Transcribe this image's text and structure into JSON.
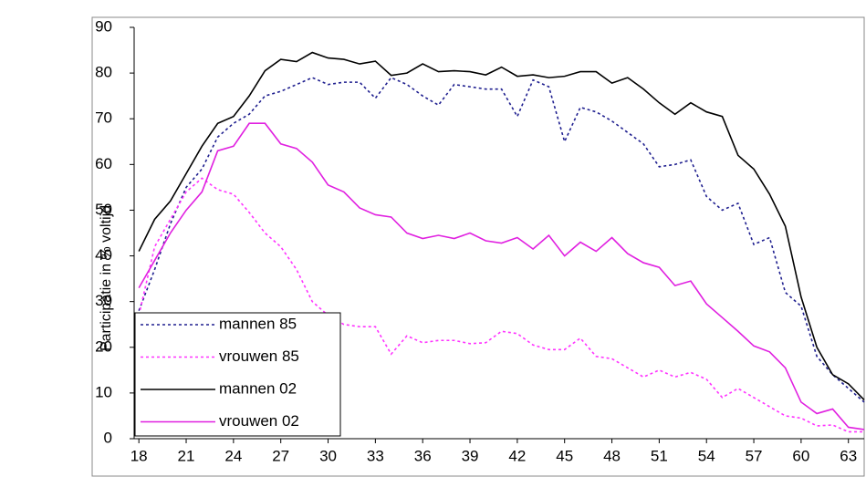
{
  "chart_data": {
    "type": "line",
    "ylabel": "Participatie in % voltijd",
    "x": [
      18,
      19,
      20,
      21,
      22,
      23,
      24,
      25,
      26,
      27,
      28,
      29,
      30,
      31,
      32,
      33,
      34,
      35,
      36,
      37,
      38,
      39,
      40,
      41,
      42,
      43,
      44,
      45,
      46,
      47,
      48,
      49,
      50,
      51,
      52,
      53,
      54,
      55,
      56,
      57,
      58,
      59,
      60,
      61,
      62,
      63,
      64
    ],
    "xlim": [
      17.7,
      64
    ],
    "xticks": [
      18,
      21,
      24,
      27,
      30,
      33,
      36,
      39,
      42,
      45,
      48,
      51,
      54,
      57,
      60,
      63
    ],
    "ylim": [
      0,
      90
    ],
    "yticks": [
      0,
      10,
      20,
      30,
      40,
      50,
      60,
      70,
      80,
      90
    ],
    "legend": "lower left",
    "series": [
      {
        "name": "mannen 85",
        "color": "#1f1f8f",
        "style": "dotted",
        "values": [
          28,
          37,
          47,
          55,
          59,
          66,
          69,
          71,
          75,
          76,
          77.5,
          79,
          77.5,
          78,
          78,
          74.5,
          79,
          77.5,
          75,
          73,
          77.5,
          77,
          76.5,
          76.5,
          70.5,
          78.5,
          77,
          65,
          72.5,
          71.5,
          69.5,
          67,
          64.5,
          59.5,
          60,
          61,
          53,
          50,
          51.5,
          42.5,
          44,
          32,
          29,
          18,
          14,
          11,
          8
        ]
      },
      {
        "name": "vrouwen 85",
        "color": "#ff33ff",
        "style": "dotted",
        "values": [
          27,
          42,
          48,
          54,
          57,
          54.5,
          53.5,
          49.5,
          45,
          42,
          37,
          30,
          27,
          25,
          24.5,
          24.5,
          18.5,
          22.5,
          21,
          21.5,
          21.5,
          20.8,
          21,
          23.5,
          23,
          20.5,
          19.5,
          19.5,
          22,
          18,
          17.5,
          15.5,
          13.5,
          15,
          13.5,
          14.5,
          13,
          9,
          11,
          9,
          7,
          5,
          4.5,
          2.8,
          3,
          1.5,
          1.5
        ]
      },
      {
        "name": "mannen 02",
        "color": "#000000",
        "style": "solid",
        "values": [
          41,
          48,
          52,
          58,
          64,
          69,
          70.5,
          75,
          80.5,
          83,
          82.5,
          84.5,
          83.3,
          83,
          82,
          82.6,
          79.5,
          80,
          82,
          80.3,
          80.5,
          80.3,
          79.6,
          81.3,
          79.3,
          79.6,
          79,
          79.3,
          80.3,
          80.3,
          77.8,
          79,
          76.5,
          73.5,
          71,
          73.5,
          71.5,
          70.5,
          62,
          59,
          53.5,
          46.5,
          31,
          20,
          14,
          12,
          8.5
        ]
      },
      {
        "name": "vrouwen 02",
        "color": "#e020e0",
        "style": "solid",
        "values": [
          33,
          39,
          45,
          50,
          54,
          63,
          64,
          69,
          69,
          64.5,
          63.5,
          60.5,
          55.5,
          54,
          50.5,
          49,
          48.5,
          45,
          43.8,
          44.5,
          43.8,
          45,
          43.3,
          42.8,
          44,
          41.5,
          44.5,
          40,
          43,
          41,
          44,
          40.5,
          38.5,
          37.5,
          33.5,
          34.5,
          29.5,
          26.5,
          23.5,
          20.3,
          19,
          15.5,
          8,
          5.5,
          6.5,
          2.5,
          2
        ]
      }
    ]
  }
}
